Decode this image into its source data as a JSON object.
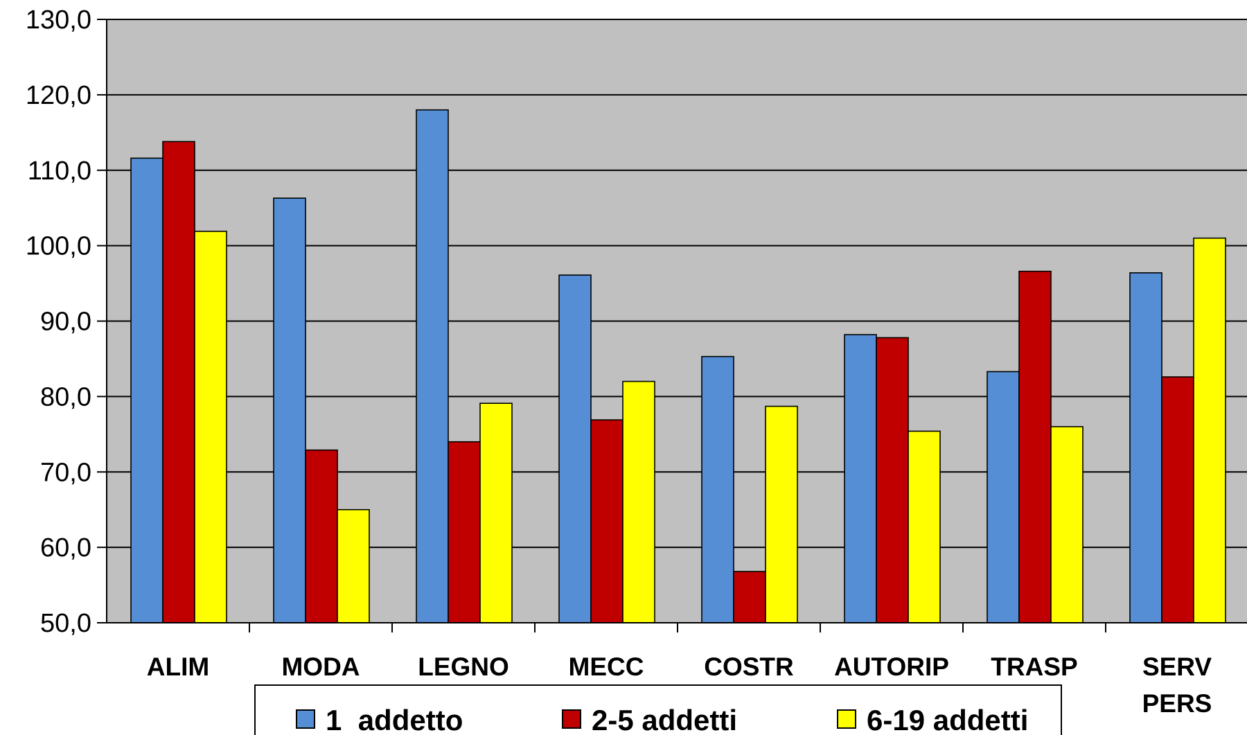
{
  "chart_data": {
    "type": "bar",
    "title": "",
    "xlabel": "",
    "ylabel": "",
    "ylim": [
      50,
      130
    ],
    "yticks": [
      "50,0",
      "60,0",
      "70,0",
      "80,0",
      "90,0",
      "100,0",
      "110,0",
      "120,0",
      "130,0"
    ],
    "ytick_values": [
      50,
      60,
      70,
      80,
      90,
      100,
      110,
      120,
      130
    ],
    "grid": true,
    "legend_position": "bottom",
    "plot_background": "#c0c0c0",
    "categories": [
      [
        "ALIM"
      ],
      [
        "MODA"
      ],
      [
        "LEGNO"
      ],
      [
        "MECC"
      ],
      [
        "COSTR"
      ],
      [
        "AUTORIP"
      ],
      [
        "TRASP"
      ],
      [
        "SERV",
        "PERS"
      ]
    ],
    "series": [
      {
        "name": "1  addetto",
        "color": "#558ed5",
        "values": [
          111.6,
          106.3,
          118.0,
          96.1,
          85.3,
          88.2,
          83.3,
          96.4
        ]
      },
      {
        "name": "2-5 addetti",
        "color": "#c00000",
        "values": [
          113.8,
          72.9,
          74.0,
          76.9,
          56.8,
          87.8,
          96.6,
          82.6
        ]
      },
      {
        "name": "6-19 addetti",
        "color": "#ffff00",
        "values": [
          101.9,
          65.0,
          79.1,
          82.0,
          78.7,
          75.4,
          76.0,
          101.0
        ]
      }
    ]
  }
}
